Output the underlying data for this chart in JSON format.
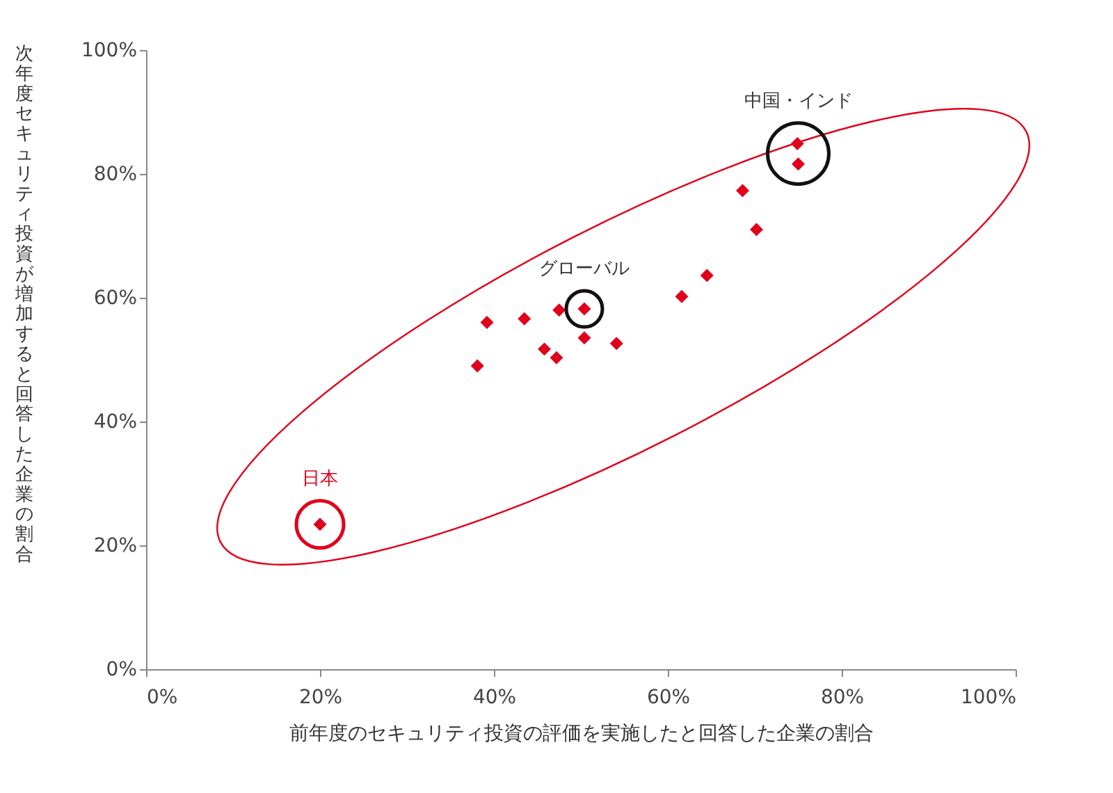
{
  "chart_data": {
    "type": "scatter",
    "xlabel": "前年度のセキュリティ投資の評価を実施したと回答した企業の割合",
    "ylabel": "次年度セキュリティ投資が増加すると回答した企業の割合",
    "x": [
      38.1,
      39.2,
      43.5,
      45.8,
      47.2,
      47.5,
      50.4,
      50.4,
      54.1,
      61.6,
      64.5,
      68.6,
      70.2,
      74.9,
      75.0,
      20.0
    ],
    "series": [
      {
        "color": "#e0001b",
        "values": [
          49.0,
          56.0,
          56.6,
          51.7,
          50.3,
          58.0,
          58.2,
          53.5,
          52.6,
          60.2,
          63.6,
          77.3,
          71.0,
          84.9,
          81.6,
          23.4
        ]
      }
    ],
    "marker": "diamond",
    "grid": false,
    "xlim": [
      0,
      100
    ],
    "ylim": [
      0,
      100
    ],
    "xticks": [
      {
        "value": 0,
        "label": "0%"
      },
      {
        "value": 20,
        "label": "20%"
      },
      {
        "value": 40,
        "label": "40%"
      },
      {
        "value": 60,
        "label": "60%"
      },
      {
        "value": 80,
        "label": "80%"
      },
      {
        "value": 100,
        "label": "100%"
      }
    ],
    "yticks": [
      {
        "value": 0,
        "label": "0%"
      },
      {
        "value": 20,
        "label": "20%"
      },
      {
        "value": 40,
        "label": "40%"
      },
      {
        "value": 60,
        "label": "60%"
      },
      {
        "value": 80,
        "label": "80%"
      },
      {
        "value": 100,
        "label": "100%"
      }
    ],
    "annotations": [
      {
        "text": "グローバル",
        "x": 50.4,
        "y": 58.2
      },
      {
        "text": "中国・インド",
        "x": 75.0,
        "y": 83.3
      },
      {
        "text": "日本",
        "x": 20.0,
        "y": 23.4
      }
    ]
  }
}
